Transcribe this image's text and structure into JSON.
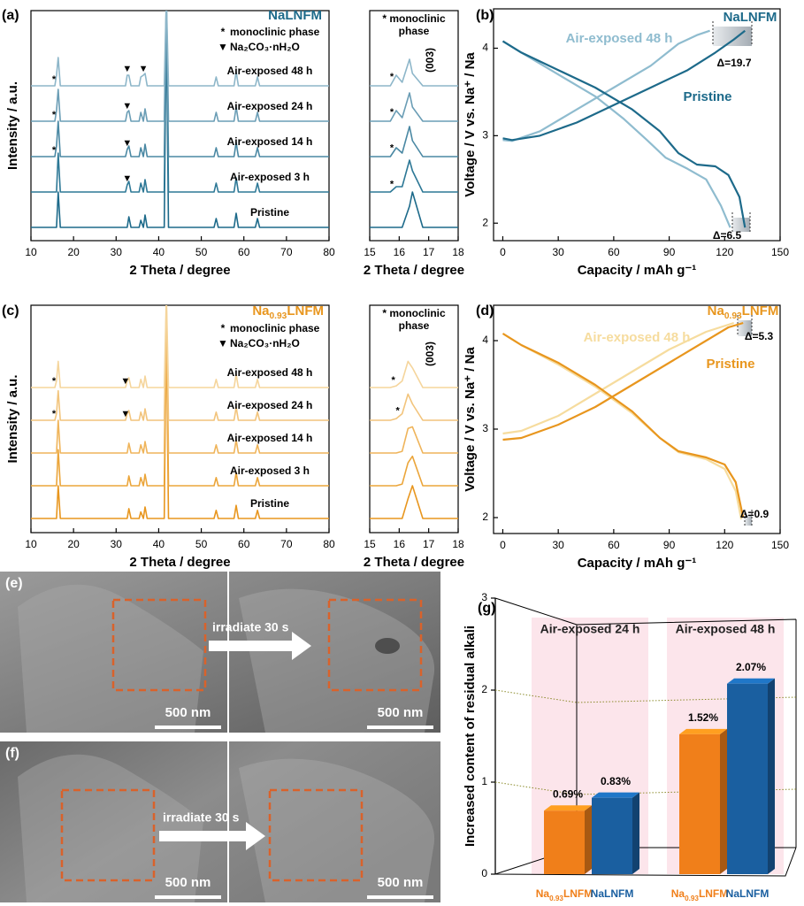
{
  "chart_data": [
    {
      "panel": "(a)",
      "type": "line",
      "stacked": true,
      "title": "NaLNFM",
      "title_color": "#1d6a8a",
      "legend": [
        {
          "symbol": "*",
          "label": "monoclinic phase"
        },
        {
          "symbol": "▼",
          "label": "Na₂CO₃·nH₂O"
        }
      ],
      "xlabel": "2 Theta / degree",
      "ylabel": "Intensity / a.u.",
      "xlim": [
        10,
        80
      ],
      "xticks": [
        10,
        20,
        30,
        40,
        50,
        60,
        70,
        80
      ],
      "x": [
        10,
        15.6,
        16.0,
        16.4,
        16.9,
        32.2,
        32.6,
        33.0,
        33.5,
        35.4,
        35.8,
        36.4,
        36.8,
        37.3,
        41.3,
        41.8,
        42.3,
        53.0,
        53.5,
        54.0,
        57.7,
        58.2,
        58.7,
        62.7,
        63.2,
        63.7,
        80
      ],
      "series": [
        {
          "name": "Pristine",
          "color": "#1d6a8a",
          "values": [
            0,
            0,
            0,
            1.0,
            0,
            0,
            0,
            0.3,
            0,
            0,
            0.2,
            0,
            0.35,
            0,
            0,
            6,
            0,
            0,
            0.25,
            0,
            0,
            0.4,
            0,
            0,
            0.25,
            0,
            0
          ]
        },
        {
          "name": "Air-exposed 3 h",
          "color": "#2d7896",
          "values": [
            0,
            0,
            0,
            1.1,
            0,
            0,
            0.2,
            0.3,
            0,
            0,
            0.25,
            0,
            0.35,
            0,
            0,
            5,
            0,
            0,
            0.25,
            0,
            0,
            0.4,
            0,
            0,
            0.25,
            0,
            0
          ],
          "markers": [
            {
              "x": 32.6,
              "text": "▼"
            }
          ]
        },
        {
          "name": "Air-exposed 14 h",
          "color": "#4a88a3",
          "values": [
            0,
            0,
            0.3,
            1.0,
            0,
            0,
            0.2,
            0.3,
            0,
            0,
            0.25,
            0,
            0.35,
            0,
            0,
            4,
            0,
            0,
            0.25,
            0,
            0,
            0.4,
            0,
            0,
            0.25,
            0,
            0
          ],
          "markers": [
            {
              "x": 15.4,
              "text": "*"
            },
            {
              "x": 32.6,
              "text": "▼"
            }
          ]
        },
        {
          "name": "Air-exposed 24 h",
          "color": "#6a9db5",
          "values": [
            0,
            0,
            0.3,
            0.9,
            0,
            0,
            0.25,
            0.3,
            0,
            0,
            0.25,
            0,
            0.35,
            0,
            0,
            3.5,
            0,
            0,
            0.25,
            0,
            0,
            0.4,
            0,
            0,
            0.25,
            0,
            0
          ],
          "markers": [
            {
              "x": 15.4,
              "text": "*"
            },
            {
              "x": 32.6,
              "text": "▼"
            }
          ]
        },
        {
          "name": "Air-exposed 48 h",
          "color": "#8db6c9",
          "values": [
            0,
            0,
            0.3,
            0.8,
            0,
            0,
            0.3,
            0.3,
            0,
            0,
            0.25,
            0.3,
            0.35,
            0,
            0,
            2.5,
            0,
            0,
            0.25,
            0,
            0,
            0.4,
            0,
            0,
            0.25,
            0,
            0
          ],
          "markers": [
            {
              "x": 15.4,
              "text": "*"
            },
            {
              "x": 32.6,
              "text": "▼"
            },
            {
              "x": 36.4,
              "text": "▼"
            }
          ]
        }
      ]
    },
    {
      "type": "line",
      "stacked": true,
      "legend": [
        {
          "symbol": "*",
          "label": "monoclinic phase"
        }
      ],
      "annotation": "(003)",
      "xlabel": "2 Theta / degree",
      "xlim": [
        15,
        18
      ],
      "xticks": [
        15,
        16,
        17,
        18
      ],
      "x": [
        15,
        15.7,
        15.9,
        16.1,
        16.35,
        16.45,
        16.8,
        18
      ],
      "series": [
        {
          "color": "#1d6a8a",
          "values": [
            0,
            0,
            0,
            0,
            0.6,
            1.0,
            0,
            0
          ]
        },
        {
          "color": "#2d7896",
          "values": [
            0,
            0,
            0.15,
            0.15,
            0.9,
            0.6,
            0,
            0
          ],
          "markers": [
            {
              "x": 15.75,
              "text": "*"
            }
          ]
        },
        {
          "color": "#4a88a3",
          "values": [
            0,
            0,
            0.25,
            0.1,
            0.85,
            0.45,
            0,
            0
          ],
          "markers": [
            {
              "x": 15.75,
              "text": "*"
            }
          ]
        },
        {
          "color": "#6a9db5",
          "values": [
            0,
            0,
            0.3,
            0.1,
            0.8,
            0.4,
            0,
            0
          ],
          "markers": [
            {
              "x": 15.75,
              "text": "*"
            }
          ]
        },
        {
          "color": "#8db6c9",
          "values": [
            0,
            0,
            0.3,
            0.1,
            0.75,
            0.35,
            0,
            0
          ],
          "markers": [
            {
              "x": 15.75,
              "text": "*"
            }
          ]
        }
      ]
    },
    {
      "panel": "(b)",
      "type": "line",
      "title": "NaLNFM",
      "title_color": "#1d6a8a",
      "xlabel": "Capacity / mAh g⁻¹",
      "ylabel": "Voltage / V vs. Na⁺ / Na",
      "xlim": [
        -5,
        150
      ],
      "xticks": [
        0,
        30,
        60,
        90,
        120,
        150
      ],
      "ylim": [
        1.8,
        4.45
      ],
      "yticks": [
        2,
        3,
        4
      ],
      "annotations": [
        "Δ=19.7",
        "Δ=6.5"
      ],
      "series": [
        {
          "name": "Air-exposed 48 h",
          "color": "#8fbccf",
          "x": [
            0,
            5,
            20,
            40,
            60,
            80,
            95,
            105,
            112,
            null,
            0,
            10,
            30,
            50,
            65,
            78,
            88,
            100,
            110,
            118,
            123
          ],
          "values": [
            2.95,
            2.94,
            3.05,
            3.3,
            3.55,
            3.8,
            4.05,
            4.15,
            4.2,
            null,
            4.08,
            3.95,
            3.7,
            3.45,
            3.2,
            2.95,
            2.75,
            2.62,
            2.5,
            2.2,
            1.95
          ]
        },
        {
          "name": "Pristine",
          "color": "#1d6a8a",
          "x": [
            0,
            5,
            20,
            40,
            60,
            80,
            100,
            115,
            125,
            131,
            null,
            0,
            10,
            30,
            50,
            70,
            85,
            95,
            105,
            115,
            122,
            128,
            131
          ],
          "values": [
            2.97,
            2.95,
            3.0,
            3.15,
            3.35,
            3.55,
            3.75,
            3.95,
            4.1,
            4.2,
            null,
            4.08,
            3.95,
            3.75,
            3.55,
            3.3,
            3.05,
            2.8,
            2.67,
            2.65,
            2.55,
            2.3,
            1.95
          ]
        }
      ]
    },
    {
      "panel": "(c)",
      "type": "line",
      "stacked": true,
      "title": [
        "Na",
        "0.93",
        "LNFM"
      ],
      "title_color": "#e8961e",
      "legend": [
        {
          "symbol": "*",
          "label": "monoclinic phase"
        },
        {
          "symbol": "▼",
          "label": "Na₂CO₃·nH₂O"
        }
      ],
      "xlabel": "2 Theta / degree",
      "ylabel": "Intensity / a.u.",
      "xlim": [
        10,
        80
      ],
      "xticks": [
        10,
        20,
        30,
        40,
        50,
        60,
        70,
        80
      ],
      "x": [
        10,
        15.6,
        16.0,
        16.4,
        16.9,
        32.2,
        32.6,
        33.0,
        33.5,
        35.4,
        35.8,
        36.4,
        36.8,
        37.3,
        41.3,
        41.8,
        42.3,
        53.0,
        53.5,
        54.0,
        57.7,
        58.2,
        58.7,
        62.7,
        63.2,
        63.7,
        80
      ],
      "series": [
        {
          "name": "Pristine",
          "color": "#e8961e",
          "values": [
            0,
            0,
            0,
            1.0,
            0,
            0,
            0,
            0.3,
            0,
            0,
            0.2,
            0,
            0.35,
            0,
            0,
            6,
            0,
            0,
            0.25,
            0,
            0,
            0.4,
            0,
            0,
            0.25,
            0,
            0
          ]
        },
        {
          "name": "Air-exposed 3 h",
          "color": "#eba53a",
          "values": [
            0,
            0,
            0,
            1.1,
            0,
            0,
            0,
            0.3,
            0,
            0,
            0.25,
            0,
            0.35,
            0,
            0,
            5,
            0,
            0,
            0.25,
            0,
            0,
            0.4,
            0,
            0,
            0.25,
            0,
            0
          ]
        },
        {
          "name": "Air-exposed 14 h",
          "color": "#efb45a",
          "values": [
            0,
            0,
            0,
            1.0,
            0,
            0,
            0,
            0.3,
            0,
            0,
            0.25,
            0,
            0.35,
            0,
            0,
            4.2,
            0,
            0,
            0.25,
            0,
            0,
            0.4,
            0,
            0,
            0.25,
            0,
            0
          ]
        },
        {
          "name": "Air-exposed 24 h",
          "color": "#f2c47c",
          "values": [
            0,
            0,
            0.2,
            0.9,
            0,
            0,
            0.2,
            0.3,
            0,
            0,
            0.25,
            0,
            0.35,
            0,
            0,
            3.6,
            0,
            0,
            0.25,
            0,
            0,
            0.4,
            0,
            0,
            0.25,
            0,
            0
          ],
          "markers": [
            {
              "x": 15.4,
              "text": "*"
            },
            {
              "x": 32.2,
              "text": "▼"
            }
          ]
        },
        {
          "name": "Air-exposed 48 h",
          "color": "#f5d59c",
          "values": [
            0,
            0,
            0.2,
            0.8,
            0,
            0,
            0.2,
            0.3,
            0,
            0,
            0.25,
            0,
            0.35,
            0,
            0,
            2.8,
            0,
            0,
            0.25,
            0,
            0,
            0.4,
            0,
            0,
            0.25,
            0,
            0
          ],
          "markers": [
            {
              "x": 15.4,
              "text": "*"
            },
            {
              "x": 32.2,
              "text": "▼"
            }
          ]
        }
      ]
    },
    {
      "type": "line",
      "stacked": true,
      "legend": [
        {
          "symbol": "*",
          "label": "monoclinic phase"
        }
      ],
      "annotation": "(003)",
      "xlabel": "2 Theta / degree",
      "xlim": [
        15,
        18
      ],
      "xticks": [
        15,
        16,
        17,
        18
      ],
      "x": [
        15,
        15.7,
        15.9,
        16.1,
        16.3,
        16.45,
        16.8,
        18
      ],
      "series": [
        {
          "color": "#e8961e",
          "values": [
            0,
            0,
            0,
            0,
            0.6,
            1.0,
            0,
            0
          ]
        },
        {
          "color": "#eba53a",
          "values": [
            0,
            0,
            0,
            0.05,
            0.7,
            0.9,
            0,
            0
          ]
        },
        {
          "color": "#efb45a",
          "values": [
            0,
            0,
            0,
            0.05,
            0.75,
            0.8,
            0,
            0
          ]
        },
        {
          "color": "#f2c47c",
          "values": [
            0,
            0,
            0.05,
            0.2,
            0.8,
            0.5,
            0,
            0
          ],
          "markers": [
            {
              "x": 15.95,
              "text": "*"
            }
          ]
        },
        {
          "color": "#f5d59c",
          "values": [
            0,
            0,
            0.05,
            0.2,
            0.8,
            0.6,
            0,
            0
          ],
          "markers": [
            {
              "x": 15.8,
              "text": "*"
            }
          ]
        }
      ]
    },
    {
      "panel": "(d)",
      "type": "line",
      "title": [
        "Na",
        "0.93",
        "LNFM"
      ],
      "title_color": "#e8961e",
      "xlabel": "Capacity / mAh g⁻¹",
      "ylabel": "Voltage / V vs. Na⁺ / Na",
      "xlim": [
        -5,
        150
      ],
      "xticks": [
        0,
        30,
        60,
        90,
        120,
        150
      ],
      "ylim": [
        1.82,
        4.4
      ],
      "yticks": [
        2,
        3,
        4
      ],
      "annotations": [
        "Δ=5.3",
        "Δ=0.9"
      ],
      "series": [
        {
          "name": "Air-exposed 48 h",
          "color": "#f6dc9e",
          "x": [
            0,
            10,
            30,
            50,
            70,
            90,
            110,
            125,
            null,
            0,
            10,
            30,
            50,
            70,
            85,
            95,
            110,
            120,
            126,
            129
          ],
          "values": [
            2.95,
            2.98,
            3.15,
            3.4,
            3.65,
            3.9,
            4.1,
            4.2,
            null,
            4.08,
            3.95,
            3.73,
            3.48,
            3.18,
            2.9,
            2.74,
            2.66,
            2.55,
            2.3,
            1.98
          ]
        },
        {
          "name": "Pristine",
          "color": "#e8961e",
          "x": [
            0,
            10,
            30,
            50,
            70,
            90,
            110,
            122,
            130,
            null,
            0,
            10,
            30,
            50,
            70,
            85,
            95,
            110,
            120,
            126,
            130
          ],
          "values": [
            2.88,
            2.9,
            3.05,
            3.25,
            3.5,
            3.75,
            4.0,
            4.15,
            4.2,
            null,
            4.08,
            3.95,
            3.75,
            3.5,
            3.2,
            2.9,
            2.75,
            2.68,
            2.6,
            2.4,
            2.0
          ]
        }
      ]
    },
    {
      "panel": "(g)",
      "type": "bar",
      "ylabel": "Increased content of residual alkali",
      "categories": [
        "Air-exposed 24 h",
        "Air-exposed 48 h"
      ],
      "ylim": [
        0,
        3
      ],
      "yticks": [
        0,
        1,
        2,
        3
      ],
      "series": [
        {
          "name": [
            "Na",
            "0.93",
            "LNFM"
          ],
          "color": "#f07f1a",
          "values": [
            0.69,
            1.52
          ],
          "value_labels": [
            "0.69%",
            "1.52%"
          ]
        },
        {
          "name": "NaLNFM",
          "color": "#1a5fa0",
          "values": [
            0.83,
            2.07
          ],
          "value_labels": [
            "0.83%",
            "2.07%"
          ]
        }
      ]
    }
  ],
  "images": [
    {
      "label": "(e)",
      "arrow_label": "irradiate 30 s",
      "scale_bar": "500 nm"
    },
    {
      "label": "(f)",
      "arrow_label": "irradiate 30 s",
      "scale_bar": "500 nm"
    }
  ]
}
